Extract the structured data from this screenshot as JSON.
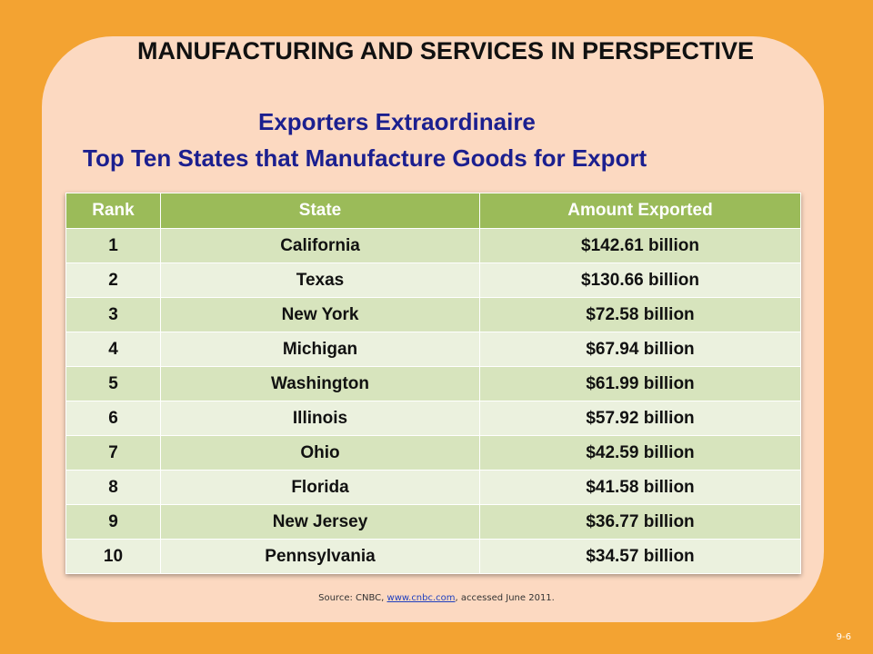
{
  "slide": {
    "title": "MANUFACTURING AND SERVICES IN PERSPECTIVE",
    "subtitle": "Exporters Extraordinaire",
    "subtitle2": "Top Ten States that Manufacture Goods for Export",
    "source_prefix": "Source: CNBC, ",
    "source_link": "www.cnbc.com",
    "source_suffix": ", accessed June 2011.",
    "slide_number": "9-6"
  },
  "table": {
    "headers": [
      "Rank",
      "State",
      "Amount Exported"
    ],
    "rows": [
      [
        "1",
        "California",
        "$142.61 billion"
      ],
      [
        "2",
        "Texas",
        "$130.66 billion"
      ],
      [
        "3",
        "New York",
        "$72.58 billion"
      ],
      [
        "4",
        "Michigan",
        "$67.94 billion"
      ],
      [
        "5",
        "Washington",
        "$61.99 billion"
      ],
      [
        "6",
        "Illinois",
        "$57.92 billion"
      ],
      [
        "7",
        "Ohio",
        "$42.59 billion"
      ],
      [
        "8",
        "Florida",
        "$41.58 billion"
      ],
      [
        "9",
        "New Jersey",
        "$36.77 billion"
      ],
      [
        "10",
        "Pennsylvania",
        "$34.57 billion"
      ]
    ]
  },
  "colors": {
    "background": "#f3a332",
    "panel": "#fcd9c1",
    "header": "#9bbb59",
    "row_dark": "#d7e4bd",
    "row_light": "#ebf1de",
    "subtitle": "#1b1f8f"
  }
}
